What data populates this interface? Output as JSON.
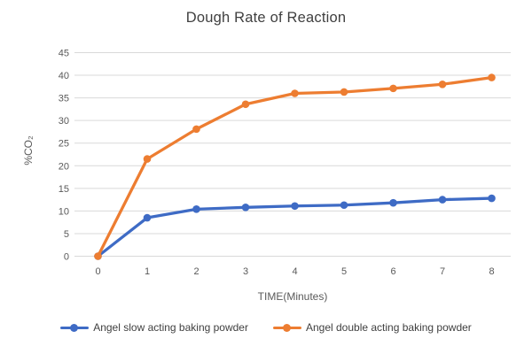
{
  "chart_data": {
    "type": "line",
    "title": "Dough Rate of Reaction",
    "xlabel": "TIME(Minutes)",
    "ylabel": "%CO₂",
    "x": [
      0,
      1,
      2,
      3,
      4,
      5,
      6,
      7,
      8
    ],
    "xticklabels": [
      "0",
      "1",
      "2",
      "3",
      "4",
      "5",
      "6",
      "7",
      "8"
    ],
    "ylim": [
      0,
      45
    ],
    "ytick_step": 5,
    "yticklabels": [
      "0",
      "5",
      "10",
      "15",
      "20",
      "25",
      "30",
      "35",
      "40",
      "45"
    ],
    "grid": true,
    "legend_position": "bottom",
    "series": [
      {
        "name": "Angel slow acting baking powder",
        "color": "#3E6BC5",
        "marker": "circle",
        "values": [
          0,
          8.5,
          10.4,
          10.8,
          11.1,
          11.3,
          11.8,
          12.5,
          12.8
        ]
      },
      {
        "name": "Angel double acting baking powder",
        "color": "#ED7D31",
        "marker": "circle",
        "values": [
          0,
          21.5,
          28.1,
          33.6,
          36.0,
          36.3,
          37.1,
          38.0,
          39.5
        ]
      }
    ]
  },
  "colors": {
    "background": "#FFFFFF",
    "gridline": "#D9D9D9",
    "tick_text": "#595959",
    "title_text": "#3F3F3F"
  }
}
